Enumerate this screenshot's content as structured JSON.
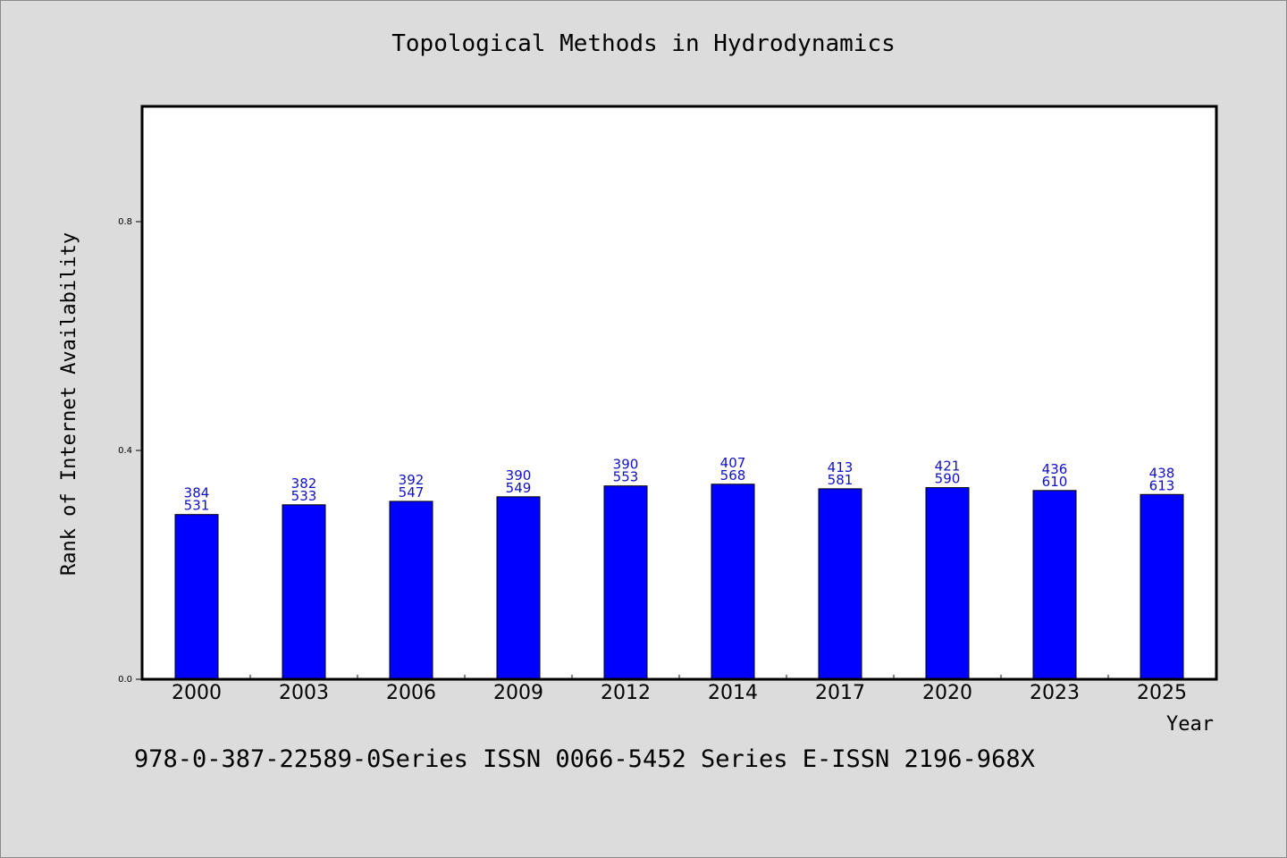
{
  "chart_data": {
    "type": "bar",
    "title": "Topological Methods in Hydrodynamics",
    "xlabel": "Year",
    "ylabel": "Rank of Internet Availability",
    "ylim": [
      0,
      1.0
    ],
    "yticks": [
      0.0,
      0.4,
      0.8
    ],
    "ytick_labels": [
      "0.0",
      "0.4",
      "0.8"
    ],
    "grid": false,
    "bar_color": "#0000ff",
    "label_color": "#1010c8",
    "categories": [
      "2000",
      "2003",
      "2006",
      "2009",
      "2012",
      "2014",
      "2017",
      "2020",
      "2023",
      "2025"
    ],
    "values": [
      0.288,
      0.305,
      0.311,
      0.319,
      0.338,
      0.341,
      0.333,
      0.335,
      0.33,
      0.323
    ],
    "labels_upper": [
      "384",
      "382",
      "392",
      "390",
      "390",
      "407",
      "413",
      "421",
      "436",
      "438"
    ],
    "labels_lower": [
      "531",
      "533",
      "547",
      "549",
      "553",
      "568",
      "581",
      "590",
      "610",
      "613"
    ]
  },
  "footer_note": "978-0-387-22589-0Series ISSN 0066-5452 Series E-ISSN 2196-968X"
}
